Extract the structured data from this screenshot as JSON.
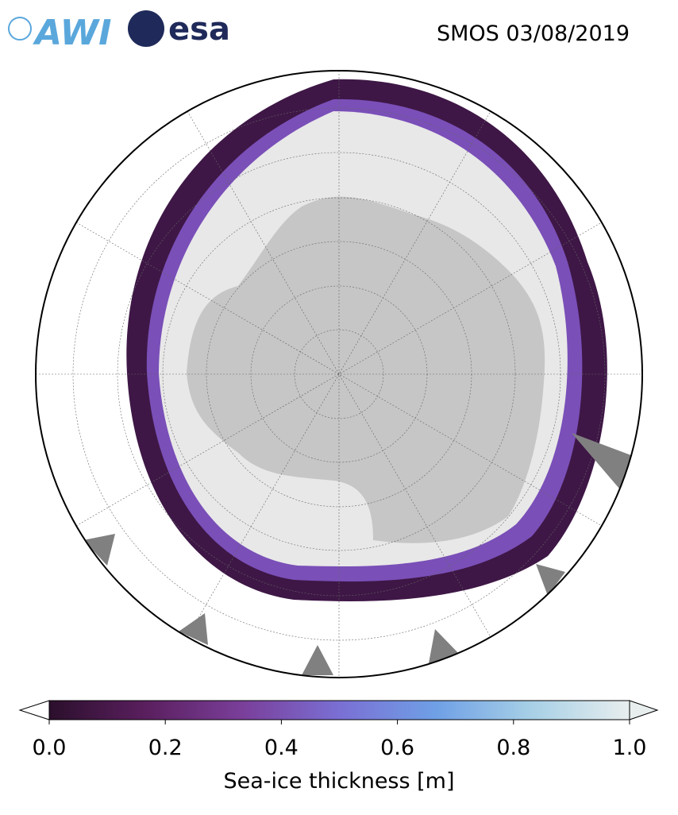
{
  "header": {
    "logo_left": "AWI",
    "logo_right": "esa",
    "title": "SMOS 03/08/2019"
  },
  "colorbar": {
    "label": "Sea-ice thickness [m]",
    "lim": [
      0,
      1
    ],
    "ticks": [
      {
        "value": 0,
        "label": "0.0"
      },
      {
        "value": 0.2,
        "label": "0.2"
      },
      {
        "value": 0.4,
        "label": "0.4"
      },
      {
        "value": 0.6,
        "label": "0.6"
      },
      {
        "value": 0.8,
        "label": "0.8"
      },
      {
        "value": 1,
        "label": "1.0"
      }
    ],
    "colors": [
      "#2b0f2c",
      "#5a1f5e",
      "#7a3f9a",
      "#7a6fd4",
      "#6fa0e6",
      "#a8d0e6",
      "#e8eeee"
    ]
  }
}
